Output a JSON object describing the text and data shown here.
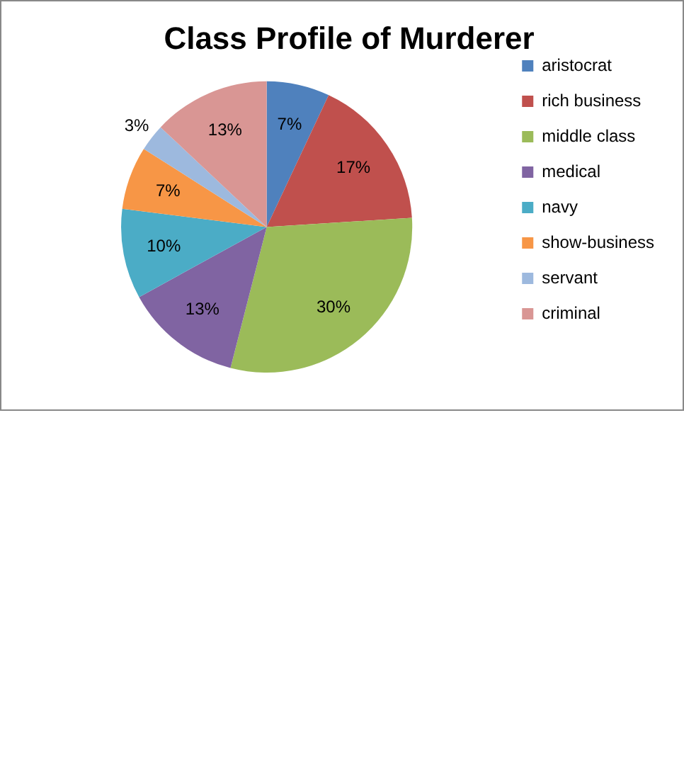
{
  "chart_data": {
    "type": "pie",
    "title": "Class Profile of Murderer",
    "categories": [
      "aristocrat",
      "rich business",
      "middle class",
      "medical",
      "navy",
      "show-business",
      "servant",
      "criminal"
    ],
    "values": [
      7,
      17,
      30,
      13,
      10,
      7,
      3,
      13
    ],
    "value_labels": [
      "7%",
      "17%",
      "30%",
      "13%",
      "10%",
      "7%",
      "3%",
      "13%"
    ],
    "colors": [
      "#4f81bd",
      "#c0504d",
      "#9bbb59",
      "#8064a2",
      "#4bacc6",
      "#f79646",
      "#9db9de",
      "#d99694"
    ],
    "legend": "right"
  }
}
